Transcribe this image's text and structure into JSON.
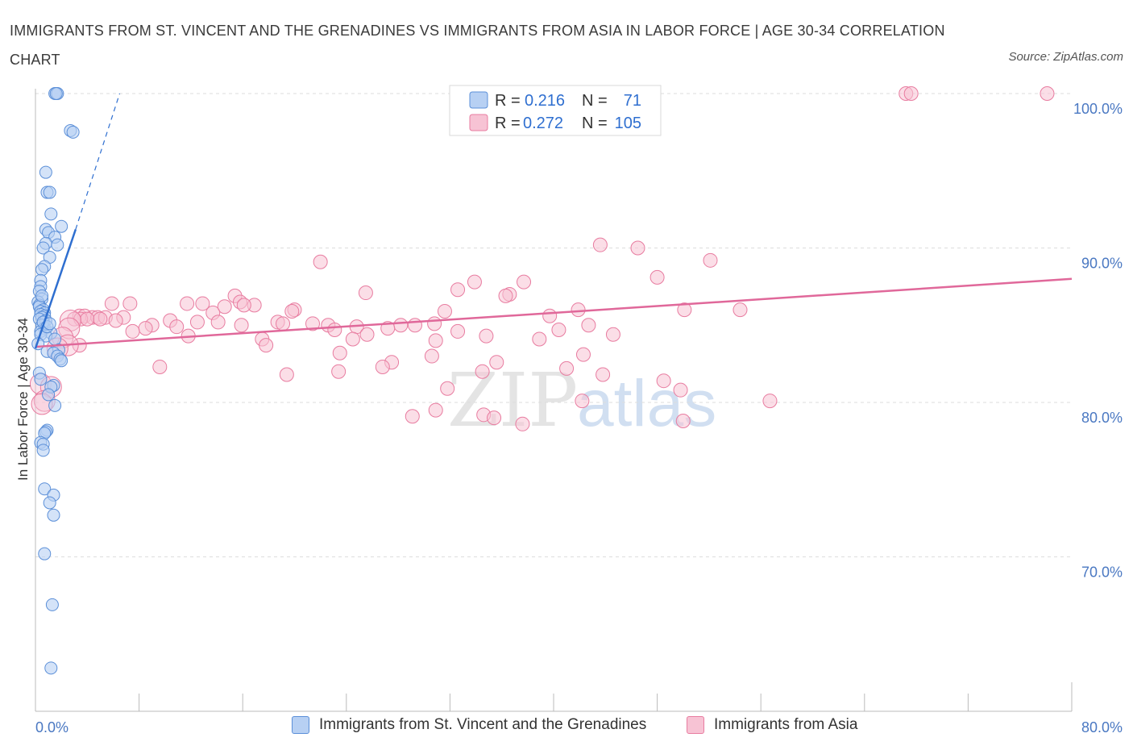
{
  "title": "IMMIGRANTS FROM ST. VINCENT AND THE GRENADINES VS IMMIGRANTS FROM ASIA IN LABOR FORCE | AGE 30-34 CORRELATION CHART",
  "source": "Source: ZipAtlas.com",
  "watermark": {
    "zip": "ZIP",
    "atlas": "atlas"
  },
  "colors": {
    "blue": "#5b8fd8",
    "blue_fill": "#b7d0f3",
    "blue_line": "#2f6fd0",
    "pink": "#e87ca0",
    "pink_fill": "#f7c3d4",
    "pink_line": "#e0689a",
    "axis_label": "#4a78c2",
    "grid": "#dddddd"
  },
  "legend_box": {
    "rows": [
      {
        "r_label": "R =",
        "r_value": "0.216",
        "n_label": "N =",
        "n_value": "71"
      },
      {
        "r_label": "R =",
        "r_value": "0.272",
        "n_label": "N =",
        "n_value": "105"
      }
    ]
  },
  "legend_bottom": [
    "Immigrants from St. Vincent and the Grenadines",
    "Immigrants from Asia"
  ],
  "chart_data": {
    "type": "scatter",
    "xlabel": "",
    "ylabel": "In Labor Force | Age 30-34",
    "xlim": [
      0,
      80
    ],
    "ylim": [
      60,
      101
    ],
    "x_tick_labels": [
      "0.0%",
      "80.0%"
    ],
    "y_ticks": [
      100,
      90,
      80,
      70
    ],
    "y_tick_labels": [
      "100.0%",
      "90.0%",
      "80.0%",
      "70.0%"
    ],
    "series": [
      {
        "name": "Immigrants from St. Vincent and the Grenadines",
        "R": 0.216,
        "N": 71,
        "trend": {
          "x0": 0,
          "y0": 83.5,
          "x1": 3.1,
          "y1": 91.2
        },
        "trend_ext": {
          "x0": 3.1,
          "y0": 91.2,
          "x1": 6.5,
          "y1": 100
        },
        "points": [
          [
            1.5,
            100
          ],
          [
            1.7,
            100
          ],
          [
            1.6,
            100
          ],
          [
            2.7,
            97.6
          ],
          [
            2.9,
            97.5
          ],
          [
            0.8,
            94.9
          ],
          [
            0.9,
            93.6
          ],
          [
            1.1,
            93.6
          ],
          [
            1.2,
            92.2
          ],
          [
            2.0,
            91.4
          ],
          [
            0.8,
            91.2
          ],
          [
            1.0,
            91.0
          ],
          [
            1.5,
            90.7
          ],
          [
            0.8,
            90.3
          ],
          [
            1.7,
            90.2
          ],
          [
            0.6,
            90.0
          ],
          [
            1.1,
            89.4
          ],
          [
            0.7,
            88.8
          ],
          [
            0.5,
            88.6
          ],
          [
            0.4,
            87.9
          ],
          [
            0.4,
            87.5
          ],
          [
            0.3,
            87.2
          ],
          [
            0.5,
            86.7
          ],
          [
            0.2,
            86.5
          ],
          [
            0.3,
            86.3
          ],
          [
            0.3,
            86.2
          ],
          [
            0.6,
            86.0
          ],
          [
            0.4,
            85.9
          ],
          [
            0.7,
            85.8
          ],
          [
            0.4,
            85.7
          ],
          [
            0.7,
            85.6
          ],
          [
            0.5,
            85.5
          ],
          [
            0.3,
            85.4
          ],
          [
            0.8,
            85.3
          ],
          [
            0.5,
            85.0
          ],
          [
            0.7,
            84.8
          ],
          [
            0.4,
            84.6
          ],
          [
            1.2,
            84.5
          ],
          [
            0.4,
            84.4
          ],
          [
            0.8,
            84.3
          ],
          [
            1.5,
            84.1
          ],
          [
            1.8,
            83.4
          ],
          [
            0.9,
            83.3
          ],
          [
            1.4,
            83.2
          ],
          [
            1.7,
            83.0
          ],
          [
            1.9,
            82.8
          ],
          [
            2.0,
            82.7
          ],
          [
            0.3,
            81.9
          ],
          [
            0.4,
            81.5
          ],
          [
            1.4,
            81.1
          ],
          [
            1.2,
            81.0
          ],
          [
            1.0,
            80.5
          ],
          [
            1.5,
            79.8
          ],
          [
            0.9,
            78.2
          ],
          [
            0.8,
            78.1
          ],
          [
            0.7,
            78.0
          ],
          [
            0.4,
            77.4
          ],
          [
            0.6,
            77.3
          ],
          [
            0.6,
            76.9
          ],
          [
            0.7,
            74.4
          ],
          [
            1.4,
            74.0
          ],
          [
            1.1,
            73.5
          ],
          [
            1.4,
            72.7
          ],
          [
            0.7,
            70.2
          ],
          [
            1.3,
            66.9
          ],
          [
            1.2,
            62.8
          ],
          [
            0.5,
            86.9
          ],
          [
            0.6,
            85.2
          ],
          [
            0.9,
            84.9
          ],
          [
            1.1,
            85.1
          ],
          [
            0.2,
            83.8
          ]
        ]
      },
      {
        "name": "Immigrants from Asia",
        "R": 0.272,
        "N": 105,
        "trend": {
          "x0": 0,
          "y0": 83.6,
          "x1": 80,
          "y1": 88.0
        },
        "points": [
          [
            67.2,
            100
          ],
          [
            67.6,
            100
          ],
          [
            78.1,
            100
          ],
          [
            43.6,
            90.2
          ],
          [
            46.5,
            90.0
          ],
          [
            22.0,
            89.1
          ],
          [
            52.1,
            89.2
          ],
          [
            48.0,
            88.1
          ],
          [
            37.7,
            87.8
          ],
          [
            33.9,
            87.8
          ],
          [
            25.5,
            87.1
          ],
          [
            32.6,
            87.3
          ],
          [
            36.6,
            87.0
          ],
          [
            36.3,
            86.9
          ],
          [
            15.4,
            86.9
          ],
          [
            15.8,
            86.5
          ],
          [
            11.7,
            86.4
          ],
          [
            12.9,
            86.4
          ],
          [
            5.9,
            86.4
          ],
          [
            7.3,
            86.4
          ],
          [
            16.9,
            86.3
          ],
          [
            16.1,
            86.3
          ],
          [
            14.6,
            86.2
          ],
          [
            20.0,
            86.0
          ],
          [
            50.1,
            86.0
          ],
          [
            54.4,
            86.0
          ],
          [
            41.9,
            86.0
          ],
          [
            19.8,
            85.9
          ],
          [
            31.6,
            85.9
          ],
          [
            13.7,
            85.8
          ],
          [
            39.7,
            85.6
          ],
          [
            3.4,
            85.6
          ],
          [
            3.8,
            85.6
          ],
          [
            4.4,
            85.5
          ],
          [
            4.8,
            85.5
          ],
          [
            5.4,
            85.5
          ],
          [
            6.8,
            85.5
          ],
          [
            3.0,
            85.4
          ],
          [
            3.5,
            85.4
          ],
          [
            4.0,
            85.4
          ],
          [
            5.0,
            85.4
          ],
          [
            2.7,
            85.3
          ],
          [
            6.2,
            85.3
          ],
          [
            10.4,
            85.3
          ],
          [
            18.7,
            85.2
          ],
          [
            12.5,
            85.2
          ],
          [
            14.1,
            85.2
          ],
          [
            19.1,
            85.1
          ],
          [
            22.6,
            85.0
          ],
          [
            42.7,
            85.0
          ],
          [
            29.3,
            85.0
          ],
          [
            21.4,
            85.1
          ],
          [
            15.9,
            85.0
          ],
          [
            9.0,
            85.0
          ],
          [
            28.2,
            85.0
          ],
          [
            30.8,
            85.1
          ],
          [
            24.8,
            84.9
          ],
          [
            27.2,
            84.8
          ],
          [
            2.6,
            84.8
          ],
          [
            8.5,
            84.8
          ],
          [
            32.6,
            84.6
          ],
          [
            40.4,
            84.7
          ],
          [
            23.1,
            84.7
          ],
          [
            25.6,
            84.4
          ],
          [
            34.8,
            84.3
          ],
          [
            11.8,
            84.3
          ],
          [
            10.9,
            84.9
          ],
          [
            44.6,
            84.4
          ],
          [
            7.5,
            84.6
          ],
          [
            2.1,
            84.2
          ],
          [
            30.9,
            84.0
          ],
          [
            24.5,
            84.1
          ],
          [
            17.5,
            84.1
          ],
          [
            17.8,
            83.7
          ],
          [
            38.9,
            84.1
          ],
          [
            3.4,
            83.7
          ],
          [
            2.5,
            83.7
          ],
          [
            1.7,
            83.5
          ],
          [
            23.5,
            83.2
          ],
          [
            30.6,
            83.0
          ],
          [
            42.3,
            83.1
          ],
          [
            27.5,
            82.6
          ],
          [
            35.6,
            82.6
          ],
          [
            41.0,
            82.2
          ],
          [
            9.6,
            82.3
          ],
          [
            26.8,
            82.3
          ],
          [
            43.8,
            81.8
          ],
          [
            19.4,
            81.8
          ],
          [
            23.4,
            82.0
          ],
          [
            34.5,
            82.0
          ],
          [
            48.5,
            81.4
          ],
          [
            31.8,
            80.9
          ],
          [
            42.2,
            80.1
          ],
          [
            30.9,
            79.5
          ],
          [
            29.1,
            79.1
          ],
          [
            49.8,
            80.8
          ],
          [
            0.4,
            81.2
          ],
          [
            1.2,
            81.0
          ],
          [
            0.7,
            80.1
          ],
          [
            0.5,
            79.9
          ],
          [
            34.6,
            79.2
          ],
          [
            35.4,
            79.0
          ],
          [
            56.7,
            80.1
          ],
          [
            50.0,
            78.8
          ],
          [
            37.6,
            78.6
          ]
        ]
      }
    ]
  }
}
